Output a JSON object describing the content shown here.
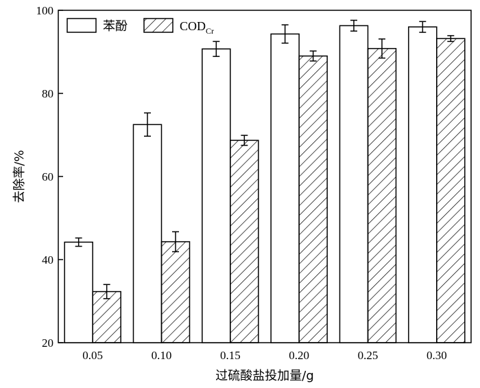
{
  "chart_data": {
    "type": "bar",
    "categories": [
      "0.05",
      "0.10",
      "0.15",
      "0.20",
      "0.25",
      "0.30"
    ],
    "series": [
      {
        "name": "苯酚",
        "values": [
          44.2,
          72.5,
          90.7,
          94.3,
          96.3,
          96.0
        ],
        "errors": [
          1.0,
          2.8,
          1.8,
          2.2,
          1.3,
          1.3
        ],
        "fill": "none"
      },
      {
        "name": "CODCr",
        "name_main": "COD",
        "name_sub": "Cr",
        "values": [
          32.3,
          44.3,
          68.7,
          89.0,
          90.8,
          93.2
        ],
        "errors": [
          1.7,
          2.4,
          1.2,
          1.2,
          2.3,
          0.7
        ],
        "fill": "hatched"
      }
    ],
    "xlabel": "过硫酸盐投加量/g",
    "ylabel": "去除率/%",
    "ylim": [
      20,
      100
    ],
    "yticks": [
      "20",
      "40",
      "60",
      "80",
      "100"
    ],
    "grid": false,
    "legend_position": "top-left",
    "colors": {
      "bar_stroke": "#000000",
      "background": "#ffffff"
    }
  }
}
